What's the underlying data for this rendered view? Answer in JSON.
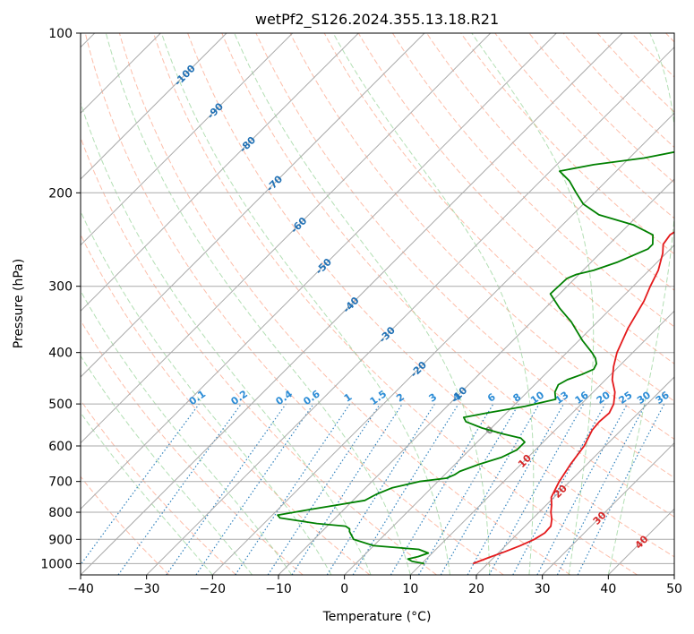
{
  "chart_data": {
    "type": "line",
    "title": "wetPf2_S126.2024.355.13.18.R21",
    "xlabel": "Temperature (°C)",
    "ylabel": "Pressure (hPa)",
    "xlim": [
      -40,
      50
    ],
    "ylim": [
      1050,
      100
    ],
    "y_scale": "log",
    "grid": true,
    "x_ticks": [
      -40,
      -30,
      -20,
      -10,
      0,
      10,
      20,
      30,
      40,
      50
    ],
    "y_ticks": [
      1000,
      900,
      800,
      700,
      600,
      500,
      400,
      300,
      200,
      100
    ],
    "series": [
      {
        "color": "#e41a1c",
        "points": [
          [
            17.8,
            1000
          ],
          [
            19.2,
            975
          ],
          [
            20.8,
            950
          ],
          [
            22.2,
            925
          ],
          [
            23.4,
            900
          ],
          [
            24.0,
            875
          ],
          [
            23.9,
            850
          ],
          [
            23.0,
            825
          ],
          [
            21.8,
            800
          ],
          [
            20.8,
            775
          ],
          [
            19.6,
            750
          ],
          [
            18.4,
            700
          ],
          [
            17.5,
            650
          ],
          [
            16.8,
            600
          ],
          [
            15.6,
            560
          ],
          [
            15.4,
            540
          ],
          [
            15.6,
            520
          ],
          [
            14.9,
            500
          ],
          [
            13.3,
            475
          ],
          [
            11.0,
            450
          ],
          [
            9.2,
            425
          ],
          [
            7.6,
            400
          ],
          [
            5.6,
            360
          ],
          [
            3.9,
            320
          ],
          [
            2.6,
            300
          ],
          [
            1.4,
            280
          ],
          [
            -0.5,
            260
          ],
          [
            -1.8,
            250
          ],
          [
            -2.2,
            240
          ],
          [
            -1.8,
            235
          ],
          [
            0.4,
            225
          ],
          [
            3.6,
            210
          ],
          [
            6.6,
            200
          ],
          [
            9.0,
            190
          ],
          [
            11.4,
            180
          ],
          [
            13.9,
            170
          ],
          [
            15.4,
            160
          ],
          [
            16.0,
            150
          ],
          [
            16.4,
            140
          ],
          [
            16.6,
            130
          ],
          [
            17.0,
            120
          ],
          [
            17.7,
            110
          ],
          [
            18.8,
            100
          ]
        ]
      },
      {
        "color": "#008000",
        "points": [
          [
            10.4,
            1000
          ],
          [
            8.2,
            990
          ],
          [
            7.2,
            980
          ],
          [
            8.4,
            970
          ],
          [
            9.4,
            955
          ],
          [
            7.4,
            940
          ],
          [
            0.0,
            925
          ],
          [
            -4.0,
            900
          ],
          [
            -5.8,
            870
          ],
          [
            -6.2,
            860
          ],
          [
            -7.2,
            850
          ],
          [
            -12.0,
            840
          ],
          [
            -18.4,
            820
          ],
          [
            -19.2,
            810
          ],
          [
            -15.0,
            790
          ],
          [
            -8.2,
            760
          ],
          [
            -7.4,
            740
          ],
          [
            -6.0,
            720
          ],
          [
            -2.8,
            700
          ],
          [
            0.8,
            690
          ],
          [
            1.5,
            680
          ],
          [
            1.8,
            670
          ],
          [
            3.6,
            650
          ],
          [
            6.0,
            630
          ],
          [
            7.2,
            610
          ],
          [
            7.2,
            590
          ],
          [
            6.0,
            580
          ],
          [
            2.8,
            570
          ],
          [
            -1.4,
            555
          ],
          [
            -4.8,
            540
          ],
          [
            -5.8,
            530
          ],
          [
            -3.0,
            520
          ],
          [
            1.8,
            505
          ],
          [
            5.4,
            490
          ],
          [
            4.2,
            475
          ],
          [
            3.6,
            460
          ],
          [
            4.2,
            450
          ],
          [
            5.6,
            440
          ],
          [
            6.6,
            430
          ],
          [
            6.2,
            420
          ],
          [
            5.2,
            410
          ],
          [
            3.8,
            400
          ],
          [
            0.6,
            380
          ],
          [
            -4.0,
            350
          ],
          [
            -7.8,
            330
          ],
          [
            -11.4,
            310
          ],
          [
            -11.2,
            290
          ],
          [
            -10.4,
            285
          ],
          [
            -8.4,
            280
          ],
          [
            -6.0,
            270
          ],
          [
            -3.4,
            255
          ],
          [
            -3.4,
            250
          ],
          [
            -4.8,
            240
          ],
          [
            -9.2,
            230
          ],
          [
            -16.0,
            220
          ],
          [
            -20.0,
            210
          ],
          [
            -22.8,
            200
          ],
          [
            -25.6,
            190
          ],
          [
            -28.6,
            182
          ],
          [
            -24.4,
            177
          ],
          [
            -17.8,
            172
          ],
          [
            -12.8,
            166
          ],
          [
            -10.0,
            160
          ],
          [
            -8.0,
            150
          ],
          [
            -5.0,
            135
          ],
          [
            -0.6,
            120
          ],
          [
            2.4,
            110
          ],
          [
            4.4,
            100
          ]
        ]
      }
    ],
    "isobar_labels": [
      "0.1",
      "0.2",
      "0.4",
      "0.6",
      "1",
      "1.5",
      "2",
      "3",
      "4",
      "6",
      "8",
      "10",
      "13",
      "16",
      "20",
      "25",
      "30",
      "36"
    ],
    "isotherm_labels": [
      "-100",
      "-90",
      "-80",
      "-70",
      "-60",
      "-50",
      "-40",
      "-30",
      "-20",
      "-10",
      "0",
      "10",
      "20",
      "30",
      "40"
    ]
  },
  "colors": {
    "temperature": "#e41a1c",
    "dewpoint": "#008000",
    "dry_adiabat": "#fc9272",
    "moist_adiabat": "#74c476",
    "mixing_ratio": "#3182bd",
    "isotherm_label": "#2171b5",
    "isotherm_label_warm": "#d62728",
    "grid": "#aaaaaa"
  }
}
